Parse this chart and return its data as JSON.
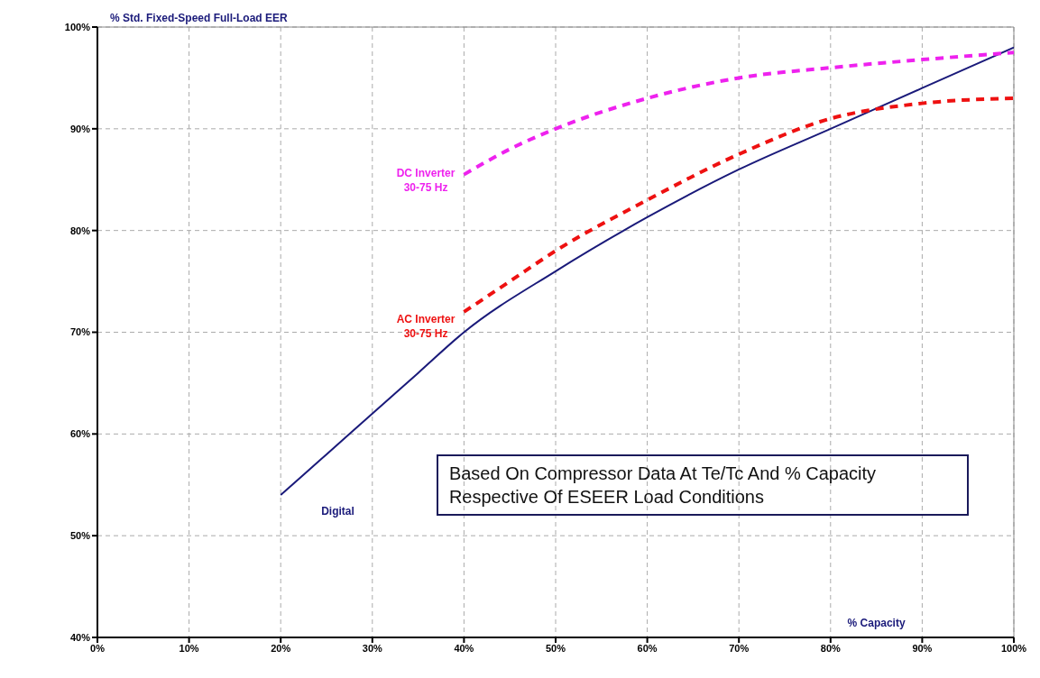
{
  "chart_data": {
    "type": "line",
    "ylabel": "% Std. Fixed-Speed Full-Load EER",
    "xlabel": "% Capacity",
    "xlim": [
      0,
      100
    ],
    "xticks": [
      {
        "value": 0,
        "label": "0%"
      },
      {
        "value": 10,
        "label": "10%"
      },
      {
        "value": 20,
        "label": "20%"
      },
      {
        "value": 30,
        "label": "30%"
      },
      {
        "value": 40,
        "label": "40%"
      },
      {
        "value": 50,
        "label": "50%"
      },
      {
        "value": 60,
        "label": "60%"
      },
      {
        "value": 70,
        "label": "70%"
      },
      {
        "value": 80,
        "label": "80%"
      },
      {
        "value": 90,
        "label": "90%"
      },
      {
        "value": 100,
        "label": "100%"
      }
    ],
    "ylim": [
      40,
      100
    ],
    "yticks": [
      {
        "value": 40,
        "label": "40%"
      },
      {
        "value": 50,
        "label": "50%"
      },
      {
        "value": 60,
        "label": "60%"
      },
      {
        "value": 70,
        "label": "70%"
      },
      {
        "value": 80,
        "label": "80%"
      },
      {
        "value": 90,
        "label": "90%"
      },
      {
        "value": 100,
        "label": "100%"
      }
    ],
    "grid": true,
    "series": [
      {
        "name": "Digital",
        "color": "#1a1a7a",
        "line_style": "solid",
        "x": [
          20,
          25,
          30,
          35,
          40,
          50,
          60,
          70,
          80,
          90,
          100
        ],
        "values": [
          54,
          58,
          62,
          66,
          70,
          76,
          81.3,
          86,
          90,
          94,
          98
        ]
      },
      {
        "name": "AC Inverter 30-75 Hz",
        "color": "#ee1111",
        "line_style": "dashed",
        "x": [
          40,
          45,
          50,
          60,
          70,
          80,
          90,
          100
        ],
        "values": [
          72,
          75,
          78,
          83,
          87.5,
          91,
          92.5,
          93
        ]
      },
      {
        "name": "DC Inverter 30-75 Hz",
        "color": "#ee22ee",
        "line_style": "dashed",
        "x": [
          40,
          45,
          50,
          60,
          70,
          80,
          90,
          100
        ],
        "values": [
          85.5,
          88,
          90,
          93,
          95,
          96,
          96.8,
          97.5
        ]
      }
    ],
    "annotations": [
      "Based On Compressor Data At Te/Tc And % Capacity Respective Of ESEER Load Conditions"
    ]
  }
}
